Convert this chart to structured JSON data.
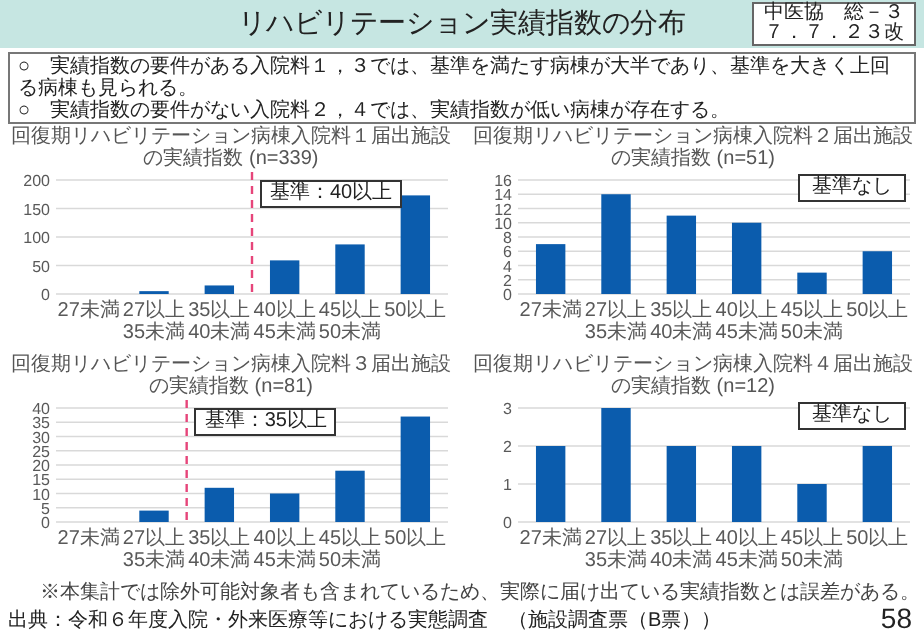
{
  "chart_data": [
    {
      "type": "other",
      "title": "リハビリテーション実績指数の分布",
      "annotations": [
        "中医協　総－３",
        "７．７．２３改",
        "○　実績指数の要件がある入院料１，３では、基準を満たす病棟が大半であり、基準を大きく上回る病棟も見られる。",
        "○　実績指数の要件がない入院料２，４では、実績指数が低い病棟が存在する。",
        "※本集計では除外可能対象者も含まれているため、実際に届け出ている実績指数とは誤差がある。",
        "出典：令和６年度入院・外来医療等における実態調査　（施設調査票（B票））",
        "58"
      ]
    },
    {
      "type": "bar",
      "title": "回復期リハビリテーション病棟入院料１届出施設の実績指数",
      "subtitle": "(n=339)",
      "categories": [
        "27未満",
        "27以上35未満",
        "35以上40未満",
        "40以上45未満",
        "45以上50未満",
        "50以上"
      ],
      "values": [
        0,
        5,
        15,
        59,
        87,
        173
      ],
      "color": "#0b5cad",
      "ylim": [
        0,
        200
      ],
      "yticks": [
        0,
        50,
        100,
        150,
        200
      ],
      "grid": "y",
      "ref_lines": [
        {
          "axis": "x",
          "value": "40以上45未満",
          "label": "基準：40以上",
          "color": "#e6457a",
          "line_style": "dashed"
        }
      ]
    },
    {
      "type": "bar",
      "title": "回復期リハビリテーション病棟入院料２届出施設の実績指数",
      "subtitle": "(n=51)",
      "categories": [
        "27未満",
        "27以上35未満",
        "35以上40未満",
        "40以上45未満",
        "45以上50未満",
        "50以上"
      ],
      "values": [
        7,
        14,
        11,
        10,
        3,
        6
      ],
      "color": "#0b5cad",
      "ylim": [
        0,
        16
      ],
      "yticks": [
        0,
        2,
        4,
        6,
        8,
        10,
        12,
        14,
        16
      ],
      "grid": "y",
      "annotations": [
        "基準なし"
      ]
    },
    {
      "type": "bar",
      "title": "回復期リハビリテーション病棟入院料３届出施設の実績指数",
      "subtitle": "(n=81)",
      "categories": [
        "27未満",
        "27以上35未満",
        "35以上40未満",
        "40以上45未満",
        "45以上50未満",
        "50以上"
      ],
      "values": [
        0,
        4,
        12,
        10,
        18,
        37
      ],
      "color": "#0b5cad",
      "ylim": [
        0,
        40
      ],
      "yticks": [
        0,
        5,
        10,
        15,
        20,
        25,
        30,
        35,
        40
      ],
      "grid": "y",
      "ref_lines": [
        {
          "axis": "x",
          "value": "35以上40未満",
          "label": "基準：35以上",
          "color": "#e6457a",
          "line_style": "dashed"
        }
      ]
    },
    {
      "type": "bar",
      "title": "回復期リハビリテーション病棟入院料４届出施設の実績指数",
      "subtitle": "(n=12)",
      "categories": [
        "27未満",
        "27以上35未満",
        "35以上40未満",
        "40以上45未満",
        "45以上50未満",
        "50以上"
      ],
      "values": [
        2,
        3,
        2,
        2,
        1,
        2
      ],
      "color": "#0b5cad",
      "ylim": [
        0,
        3
      ],
      "yticks": [
        0,
        1,
        2,
        3
      ],
      "grid": "y",
      "annotations": [
        "基準なし"
      ]
    }
  ]
}
